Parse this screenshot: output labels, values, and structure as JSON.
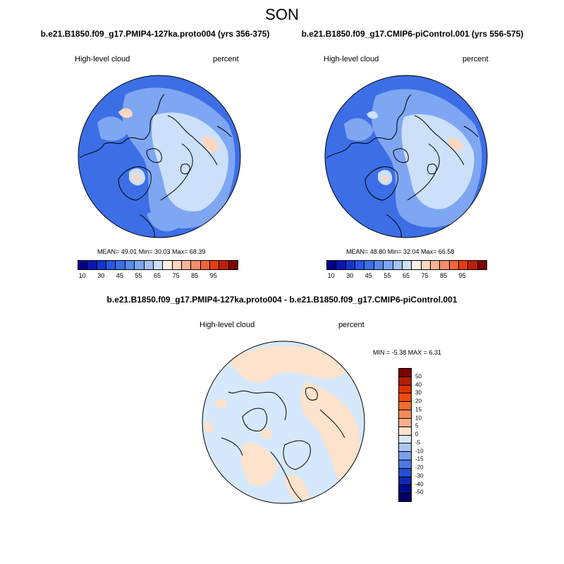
{
  "title": "SON",
  "panels": [
    {
      "run": "b.e21.B1850.f09_g17.PMIP4-127ka.proto004 (yrs 356-375)",
      "left_label": "High-level cloud",
      "right_label": "percent",
      "stats": "MEAN=  49.01  Min=  30.03  Max=  68.39"
    },
    {
      "run": "b.e21.B1850.f09_g17.CMIP6-piControl.001 (yrs 556-575)",
      "left_label": "High-level cloud",
      "right_label": "percent",
      "stats": "MEAN=  48.80  Min=  32.04  Max=  66.58"
    }
  ],
  "diff": {
    "run": "b.e21.B1850.f09_g17.PMIP4-127ka.proto004 - b.e21.B1850.f09_g17.CMIP6-piControl.001",
    "left_label": "High-level cloud",
    "right_label": "percent",
    "stats": "MIN =  -5.38 MAX =   6.31"
  },
  "colorbar_main": {
    "ticks": [
      "10",
      "30",
      "45",
      "55",
      "65",
      "75",
      "85",
      "95"
    ],
    "colors": [
      "#00008c",
      "#0a14b4",
      "#1432d2",
      "#2a54e4",
      "#3c6ee6",
      "#5a8aee",
      "#7ea6f2",
      "#a4c2f4",
      "#cce0fa",
      "#fff0e6",
      "#fcd6c0",
      "#f8b496",
      "#f58c6a",
      "#f2643c",
      "#e43c14",
      "#c01e08",
      "#7c0000"
    ]
  },
  "colorbar_diff": {
    "ticks": [
      "50",
      "40",
      "30",
      "20",
      "15",
      "10",
      "5",
      "0",
      "-5",
      "-10",
      "-15",
      "-20",
      "-30",
      "-40",
      "-50"
    ],
    "colors": [
      "#7c0000",
      "#b41e00",
      "#dc3200",
      "#f04a14",
      "#f26a32",
      "#f58c5a",
      "#f8b08a",
      "#fde2cc",
      "#d6e8fc",
      "#a8c6f4",
      "#7aa0ec",
      "#4c78e4",
      "#2450d8",
      "#1028b0",
      "#000c8c",
      "#000064"
    ]
  },
  "map_colors": {
    "land_edge": "#000000",
    "deep_blue": "#3c6ee6",
    "mid_blue": "#7ea6f2",
    "light_blue": "#cce0fa",
    "peach": "#fcd6c0",
    "diff_blue": "#d6e8fc",
    "diff_peach": "#fde2cc"
  }
}
